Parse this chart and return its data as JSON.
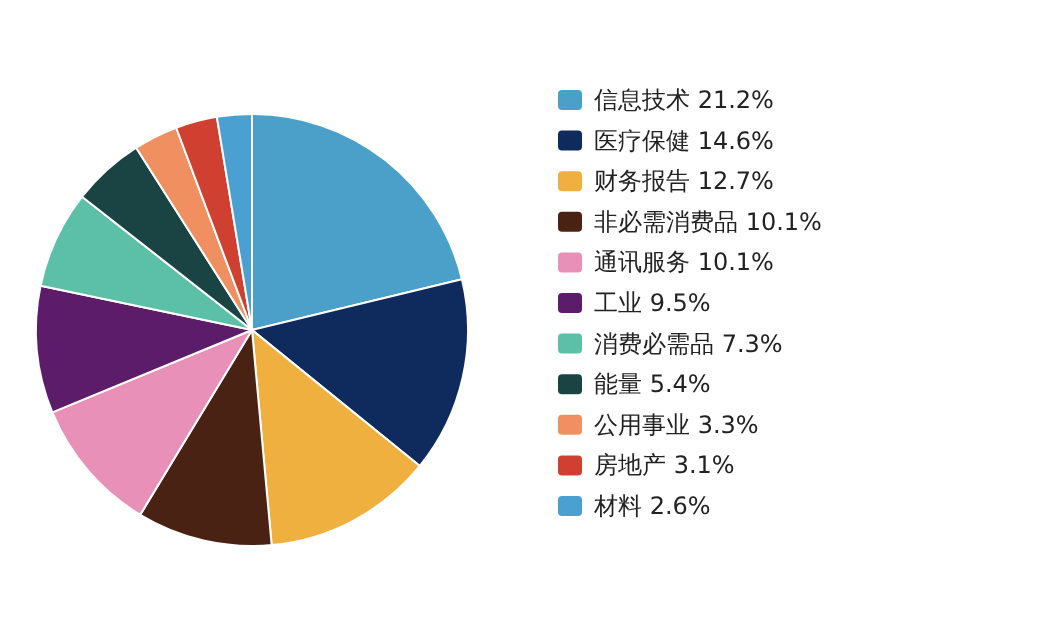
{
  "chart_data": {
    "type": "pie",
    "categories": [
      "信息技术",
      "医疗保健",
      "财务报告",
      "非必需消费品",
      "通讯服务",
      "工业",
      "消费必需品",
      "能量",
      "公用事业",
      "房地产",
      "材料"
    ],
    "values": [
      21.2,
      14.6,
      12.7,
      10.1,
      10.1,
      9.5,
      7.3,
      5.4,
      3.3,
      3.1,
      2.6
    ],
    "value_labels": [
      "21.2%",
      "14.6%",
      "12.7%",
      "10.1%",
      "10.1%",
      "9.5%",
      "7.3%",
      "5.4%",
      "3.3%",
      "3.1%",
      "2.6%"
    ],
    "colors": [
      "#4aa0c8",
      "#0f2a5c",
      "#f0b040",
      "#4a2214",
      "#e890b8",
      "#5c1c6a",
      "#5cc0a8",
      "#1a4444",
      "#f09060",
      "#d04030",
      "#4aa0d0"
    ],
    "legend": "right"
  }
}
